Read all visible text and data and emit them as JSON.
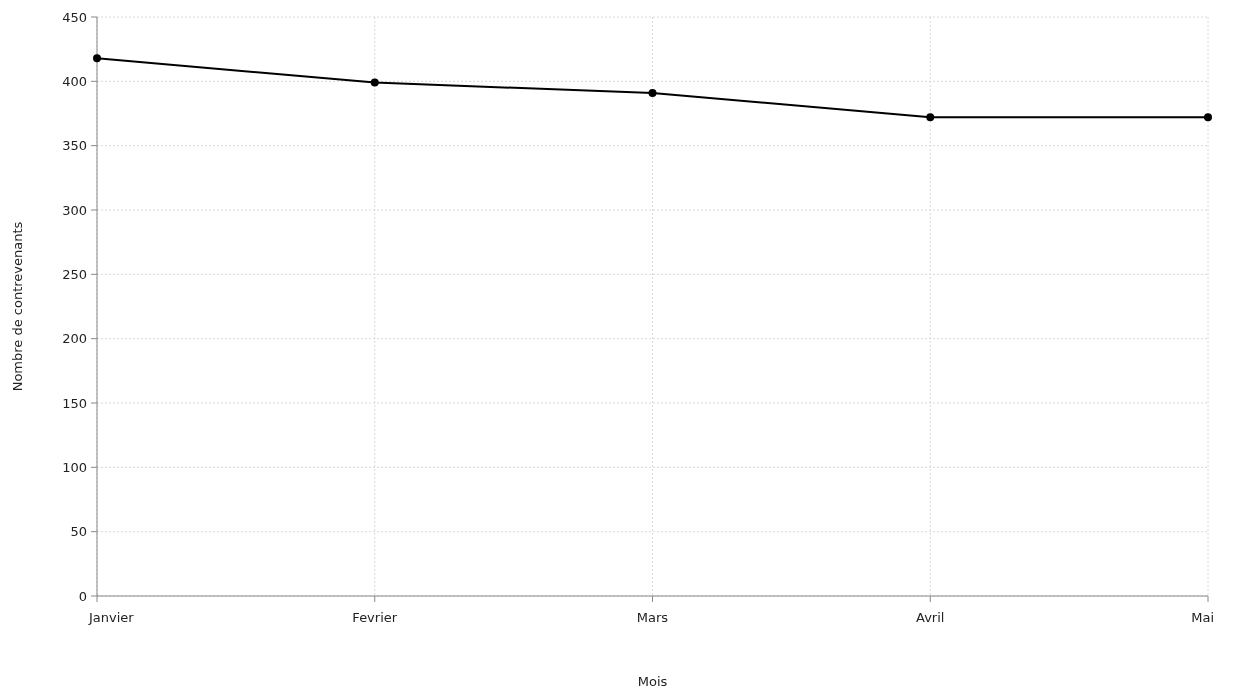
{
  "chart_data": {
    "type": "line",
    "xlabel": "Mois",
    "ylabel": "Nombre de contrevenants",
    "categories": [
      "Janvier",
      "Fevrier",
      "Mars",
      "Avril",
      "Mai"
    ],
    "series": [
      {
        "color": "#000000",
        "values": [
          418,
          399,
          391,
          372,
          372
        ]
      }
    ],
    "ylim": [
      0,
      450
    ],
    "yticks": [
      0,
      50,
      100,
      150,
      200,
      250,
      300,
      350,
      400,
      450
    ],
    "grid": true,
    "marker": "circle"
  }
}
